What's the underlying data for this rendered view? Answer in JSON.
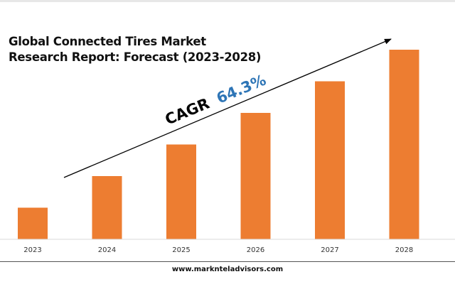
{
  "title_line1": "Global Connected Tires Market",
  "title_line2": "Research Report: Forecast (2023-2028)",
  "cagr_label": "CAGR",
  "cagr_value": "64.3%",
  "website": "www.marknteladvisors.com",
  "colors": {
    "bar": "#ED7D31",
    "cagr_value": "#2E75B6",
    "arrow": "#000000"
  },
  "chart_data": {
    "type": "bar",
    "categories": [
      "2023",
      "2024",
      "2025",
      "2026",
      "2027",
      "2028"
    ],
    "values": [
      1.0,
      2.0,
      3.0,
      4.0,
      5.0,
      6.0
    ],
    "title": "Global Connected Tires Market Research Report: Forecast (2023-2028)",
    "xlabel": "",
    "ylabel": "",
    "ylim": [
      0,
      6.0
    ],
    "grid": false,
    "legend": "none",
    "annotation": "CAGR 64.3%"
  }
}
